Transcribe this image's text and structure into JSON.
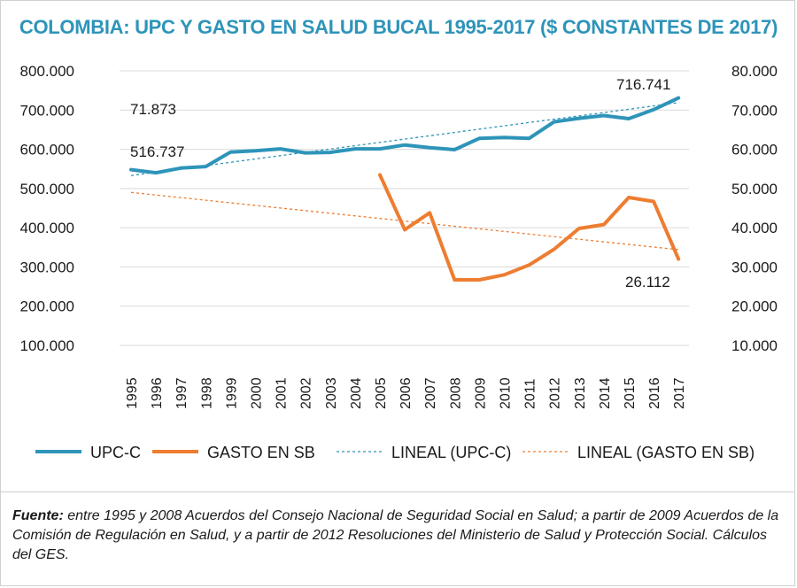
{
  "chart_data": {
    "type": "line",
    "title": "COLOMBIA: UPC Y GASTO EN SALUD BUCAL 1995-2017 ($ CONSTANTES DE 2017)",
    "categories": [
      "1995",
      "1996",
      "1997",
      "1998",
      "1999",
      "2000",
      "2001",
      "2002",
      "2003",
      "2004",
      "2005",
      "2006",
      "2007",
      "2008",
      "2009",
      "2010",
      "2011",
      "2012",
      "2013",
      "2014",
      "2015",
      "2016",
      "2017"
    ],
    "y_left": {
      "ylim": [
        100000,
        800000
      ],
      "ticks": [
        "100.000",
        "200.000",
        "300.000",
        "400.000",
        "500.000",
        "600.000",
        "700.000",
        "800.000"
      ]
    },
    "y_right": {
      "ylim": [
        10000,
        80000
      ],
      "ticks": [
        "10.000",
        "20.000",
        "30.000",
        "40.000",
        "50.000",
        "60.000",
        "70.000",
        "80.000"
      ]
    },
    "grid": true,
    "legend_position": "bottom",
    "series": [
      {
        "name": "UPC-C",
        "axis": "left",
        "color": "#2e94b9",
        "values": [
          548000,
          540000,
          552000,
          556000,
          593000,
          596000,
          601000,
          591000,
          592000,
          601000,
          601000,
          611000,
          604000,
          599000,
          628000,
          630000,
          628000,
          670000,
          679000,
          686000,
          678000,
          701000,
          731000
        ]
      },
      {
        "name": "GASTO EN SB",
        "axis": "right",
        "color": "#ed7d31",
        "values": [
          null,
          null,
          null,
          null,
          null,
          null,
          null,
          null,
          null,
          null,
          53500,
          39500,
          43800,
          26700,
          26700,
          28000,
          30500,
          34500,
          39800,
          40800,
          47700,
          46700,
          32000
        ]
      }
    ],
    "trendlines": [
      {
        "name": "LINEAL (UPC-C)",
        "axis": "left",
        "color": "#2e94b9",
        "start": 533000,
        "end": 719000
      },
      {
        "name": "LINEAL (GASTO EN SB)",
        "axis": "right",
        "color": "#ed7d31",
        "start": 49000,
        "end": 34400
      }
    ],
    "annotations": [
      "71.873",
      "516.737",
      "716.741",
      "26.112"
    ]
  },
  "footer": {
    "label": "Fuente:",
    "text": " entre 1995 y 2008 Acuerdos del Consejo Nacional de Seguridad Social en Salud; a partir de 2009 Acuerdos de la Comisión de Regulación en Salud, y a partir de 2012 Resoluciones del Ministerio de Salud y Protección Social. Cálculos del GES."
  }
}
